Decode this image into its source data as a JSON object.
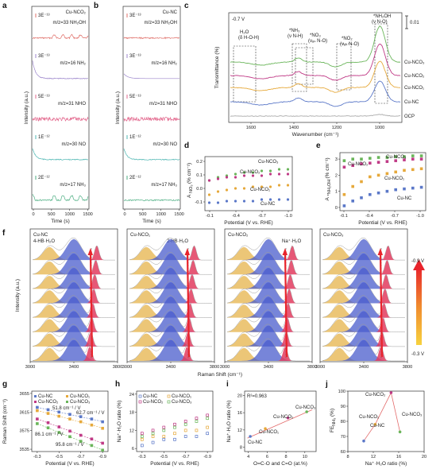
{
  "panel_letters": [
    "a",
    "b",
    "c",
    "d",
    "e",
    "f",
    "g",
    "h",
    "i",
    "j"
  ],
  "colors": {
    "cu_nc": "#5b78c8",
    "cu_nco1": "#e6a93b",
    "cu_nco2": "#c03a86",
    "cu_nco3": "#6ab55a",
    "ocp": "#aaaaaa",
    "ms_nh4oh": "#e0706a",
    "ms_nh3": "#9c86cc",
    "ms_nho": "#e36a8f",
    "ms_no": "#4fb7b3",
    "ms_nh2": "#4cae82",
    "raman_pink": "#e23b5e",
    "raman_blue": "#4a5ccc",
    "raman_yellow": "#e6b34a",
    "gradient_top": "#e8242c",
    "gradient_bottom": "#f7d23e"
  },
  "panel_a": {
    "title": "Cu-NCO₂",
    "ylabel": "Intensity (a.u.)",
    "xlabel": "Time (s)",
    "xticks": [
      "0",
      "500",
      "1000",
      "1500"
    ],
    "traces": [
      {
        "scale": "3E⁻¹³",
        "label": "m/z=33 NH₂OH"
      },
      {
        "scale": "3E⁻¹³",
        "label": "m/z=16 NH₂"
      },
      {
        "scale": "5E⁻¹³",
        "label": "m/z=31 NHO"
      },
      {
        "scale": "1E⁻¹²",
        "label": "m/z=30 NO"
      },
      {
        "scale": "2E⁻¹²",
        "label": "m/z=17 NH₃"
      }
    ]
  },
  "panel_b": {
    "title": "Cu-NC",
    "ylabel": "Intensity (a.u.)",
    "xlabel": "Time (s)",
    "xticks": [
      "0",
      "500",
      "1000",
      "1500"
    ],
    "traces": [
      {
        "scale": "3E⁻¹³",
        "label": "m/z=33 NH₂OH"
      },
      {
        "scale": "3E⁻¹³",
        "label": "m/z=16 NH₂"
      },
      {
        "scale": "5E⁻¹³",
        "label": "m/z=31 NHO"
      },
      {
        "scale": "1E⁻¹²",
        "label": "m/z=30 NO"
      },
      {
        "scale": "2E⁻¹²",
        "label": "m/z=17 NH₃"
      }
    ]
  },
  "panel_c": {
    "potential": "-0.7 V",
    "ylabel": "Transmittance (%)",
    "xlabel": "Wavenumber (cm⁻¹)",
    "scale_bar": "0.01",
    "xticks": [
      "1600",
      "1400",
      "1200",
      "1000"
    ],
    "annotations": [
      {
        "line1": "H₂O",
        "line2": "(δ H-O-H)"
      },
      {
        "line1": "*NH₃",
        "line2": "(ν N-H)"
      },
      {
        "line1": "*NO₃",
        "line2": "(νₐₛ N-O)"
      },
      {
        "line1": "*NO₂",
        "line2": "(νₐₛ N-O)"
      },
      {
        "line1": "*NH₂OH",
        "line2": "(ν N-O)"
      }
    ],
    "series": [
      "Cu-NCO₃",
      "Cu-NCO₂",
      "Cu-NCO₁",
      "Cu-NC",
      "OCP"
    ]
  },
  "panel_d": {
    "ylabel": "A",
    "ylabel_sub": "NO₃",
    "ylabel_unit": "(% cm⁻¹)",
    "xlabel": "Potential (V vs. RHE)",
    "xticks": [
      "-0.1",
      "-0.4",
      "-0.7",
      "-1.0"
    ],
    "yticks": [
      "0.2",
      "0.1",
      "0.0",
      "-0.1"
    ],
    "series_labels": [
      "Cu-NCO₃",
      "Cu-NCO₂",
      "Cu-NCO₁",
      "Cu-NC"
    ]
  },
  "panel_e": {
    "ylabel": "A",
    "ylabel_sub": "*NH₂OH",
    "ylabel_unit": "(% cm⁻¹)",
    "xlabel": "Potential (V vs. RHE)",
    "xticks": [
      "-0.1",
      "-0.4",
      "-0.7",
      "-1.0"
    ],
    "yticks": [
      "3",
      "2",
      "1",
      "0"
    ],
    "series_labels": [
      "Cu-NCO₃",
      "Cu-NCO₂",
      "Cu-NCO₁",
      "Cu-NC"
    ]
  },
  "panel_f": {
    "ylabel": "Intensity (a.u.)",
    "xlabel": "Raman Shift (cm⁻¹)",
    "xticks": [
      "3000",
      "3400",
      "3800"
    ],
    "subpanels": [
      {
        "title": "Cu-NC",
        "note": "4-HB·H₂O"
      },
      {
        "title": "Cu-NCO₁",
        "note": "2-HB·H₂O"
      },
      {
        "title": "Cu-NCO₂",
        "note": "Na⁺·H₂O"
      },
      {
        "title": "Cu-NCO₃",
        "note": ""
      }
    ],
    "colorbar_top": "-0.9 V",
    "colorbar_bottom": "-0.3 V"
  },
  "panel_g": {
    "ylabel": "Raman Shift (cm⁻¹)",
    "xlabel": "Potential (V vs. RHE)",
    "yticks": [
      "3655",
      "3615",
      "3575",
      "3535"
    ],
    "xticks": [
      "-0.3",
      "-0.5",
      "-0.7",
      "-0.9"
    ],
    "legend": [
      "Cu-NC",
      "Cu-NCO₁",
      "Cu-NCO₂",
      "Cu-NCO₃"
    ],
    "slopes": [
      "51.8 cm⁻¹ / V",
      "62.7 cm⁻¹ / V",
      "86.1 cm⁻¹ / V",
      "95.8 cm⁻¹ / V"
    ]
  },
  "panel_h": {
    "ylabel": "Na⁺·H₂O ratio (%)",
    "xlabel": "Potential (V vs. RHE)",
    "yticks": [
      "24",
      "18",
      "12",
      "6"
    ],
    "xticks": [
      "-0.3",
      "-0.5",
      "-0.7",
      "-0.9"
    ],
    "legend": [
      "Cu-NC",
      "Cu-NCO₁",
      "Cu-NCO₂",
      "Cu-NCO₃"
    ]
  },
  "panel_i": {
    "ylabel": "Na⁺·H₂O ratio (%)",
    "xlabel": "O=C-O and C=O (at.%)",
    "r2": "R²=0.963",
    "yticks": [
      "20",
      "16",
      "12",
      "8"
    ],
    "xticks": [
      "4",
      "6",
      "8",
      "10"
    ],
    "point_labels": [
      "Cu-NC",
      "Cu-NCO₁",
      "Cu-NCO₂",
      "Cu-NCO₃"
    ]
  },
  "panel_j": {
    "ylabel": "FE",
    "ylabel_sub": "NH₃",
    "ylabel_unit": "(%)",
    "xlabel": "Na⁺·H₂O ratio (%)",
    "yticks": [
      "100",
      "90",
      "80",
      "70",
      "60"
    ],
    "xticks": [
      "8",
      "12",
      "16",
      "20"
    ],
    "point_labels": [
      "Cu-NC",
      "Cu-NCO₁",
      "Cu-NCO₂",
      "Cu-NCO₃"
    ]
  },
  "chart_data": [
    {
      "panel": "d",
      "type": "scatter",
      "x": [
        -0.1,
        -0.2,
        -0.3,
        -0.4,
        -0.5,
        -0.6,
        -0.7,
        -0.8,
        -0.9,
        -1.0
      ],
      "xlabel": "Potential (V vs. RHE)",
      "xlim": [
        -0.05,
        -1.05
      ],
      "ylim": [
        -0.12,
        0.22
      ],
      "series": [
        {
          "name": "Cu-NCO₃",
          "values": [
            0.07,
            0.09,
            0.1,
            0.11,
            0.12,
            0.12,
            0.13,
            0.13,
            0.14,
            0.14
          ]
        },
        {
          "name": "Cu-NCO₂",
          "values": [
            0.07,
            0.08,
            0.09,
            0.09,
            0.1,
            0.1,
            0.1,
            0.11,
            0.11,
            0.11
          ]
        },
        {
          "name": "Cu-NCO₁",
          "values": [
            -0.02,
            0.0,
            0.01,
            0.02,
            0.02,
            0.03,
            0.03,
            0.03,
            0.04,
            0.04
          ]
        },
        {
          "name": "Cu-NC",
          "values": [
            -0.07,
            -0.07,
            -0.06,
            -0.06,
            -0.06,
            -0.06,
            -0.05,
            -0.05,
            -0.05,
            -0.05
          ]
        }
      ]
    },
    {
      "panel": "e",
      "type": "scatter",
      "x": [
        -0.1,
        -0.2,
        -0.3,
        -0.4,
        -0.5,
        -0.6,
        -0.7,
        -0.8,
        -0.9,
        -1.0
      ],
      "xlabel": "Potential (V vs. RHE)",
      "xlim": [
        -0.05,
        -1.05
      ],
      "ylim": [
        -0.2,
        3.4
      ],
      "series": [
        {
          "name": "Cu-NCO₃",
          "values": [
            2.9,
            3.0,
            3.0,
            3.05,
            3.1,
            3.1,
            3.15,
            3.15,
            3.2,
            3.2
          ]
        },
        {
          "name": "Cu-NCO₂",
          "values": [
            2.5,
            2.6,
            2.7,
            2.75,
            2.8,
            2.85,
            2.9,
            2.95,
            3.0,
            3.0
          ]
        },
        {
          "name": "Cu-NCO₁",
          "values": [
            0.8,
            1.3,
            1.6,
            1.9,
            2.0,
            2.1,
            2.2,
            2.3,
            2.35,
            2.4
          ]
        },
        {
          "name": "Cu-NC",
          "values": [
            0.1,
            0.4,
            0.6,
            0.8,
            0.9,
            1.0,
            1.1,
            1.15,
            1.2,
            1.25
          ]
        }
      ]
    },
    {
      "panel": "g",
      "type": "scatter",
      "x": [
        -0.3,
        -0.4,
        -0.5,
        -0.6,
        -0.7,
        -0.8,
        -0.9
      ],
      "xlabel": "Potential (V vs. RHE)",
      "ylabel": "Raman Shift (cm⁻¹)",
      "xlim": [
        -0.25,
        -0.95
      ],
      "ylim": [
        3530,
        3660
      ],
      "series": [
        {
          "name": "Cu-NC",
          "values": [
            3625,
            3620,
            3615,
            3610,
            3605,
            3600,
            3594
          ]
        },
        {
          "name": "Cu-NCO₁",
          "values": [
            3618,
            3612,
            3606,
            3600,
            3594,
            3587,
            3580
          ]
        },
        {
          "name": "Cu-NCO₂",
          "values": [
            3600,
            3592,
            3583,
            3574,
            3565,
            3557,
            3548
          ]
        },
        {
          "name": "Cu-NCO₃",
          "values": [
            3590,
            3581,
            3571,
            3562,
            3552,
            3543,
            3533
          ]
        }
      ]
    },
    {
      "panel": "h",
      "type": "scatter",
      "x": [
        -0.3,
        -0.4,
        -0.5,
        -0.6,
        -0.7,
        -0.8,
        -0.9
      ],
      "xlabel": "Potential (V vs. RHE)",
      "ylabel": "Na⁺·H₂O ratio (%)",
      "xlim": [
        -0.25,
        -0.95
      ],
      "ylim": [
        5,
        25
      ],
      "series": [
        {
          "name": "Cu-NC",
          "values": [
            7,
            8,
            9,
            9,
            10,
            10,
            11
          ]
        },
        {
          "name": "Cu-NCO₁",
          "values": [
            9,
            10,
            10,
            11,
            12,
            12,
            13
          ]
        },
        {
          "name": "Cu-NCO₂",
          "values": [
            11,
            12,
            13,
            14,
            15,
            16,
            17
          ]
        },
        {
          "name": "Cu-NCO₃",
          "values": [
            10,
            11,
            12,
            13,
            14,
            15,
            16
          ]
        }
      ]
    },
    {
      "panel": "i",
      "type": "scatter",
      "x": [
        4.2,
        5.8,
        8.2,
        10.2
      ],
      "xlabel": "O=C-O and C=O (at.%)",
      "ylabel": "Na⁺·H₂O ratio (%)",
      "xlim": [
        3.6,
        11.2
      ],
      "ylim": [
        7,
        21
      ],
      "series": [
        {
          "name": "Cu-NC",
          "values": [
            10.5
          ]
        },
        {
          "name": "Cu-NCO₁",
          "values": [
            12.3
          ]
        },
        {
          "name": "Cu-NCO₂",
          "values": [
            14.8
          ]
        },
        {
          "name": "Cu-NCO₃",
          "values": [
            16.2
          ]
        }
      ],
      "annotations": [
        "R²=0.963"
      ]
    },
    {
      "panel": "j",
      "type": "line",
      "x": [
        10.5,
        12.3,
        14.8,
        16.2
      ],
      "xlabel": "Na⁺·H₂O ratio (%)",
      "ylabel": "FE NH₃ (%)",
      "xlim": [
        8,
        20
      ],
      "ylim": [
        60,
        100
      ],
      "series": [
        {
          "name": "FE",
          "values": [
            67,
            78,
            99,
            73
          ]
        }
      ]
    }
  ]
}
